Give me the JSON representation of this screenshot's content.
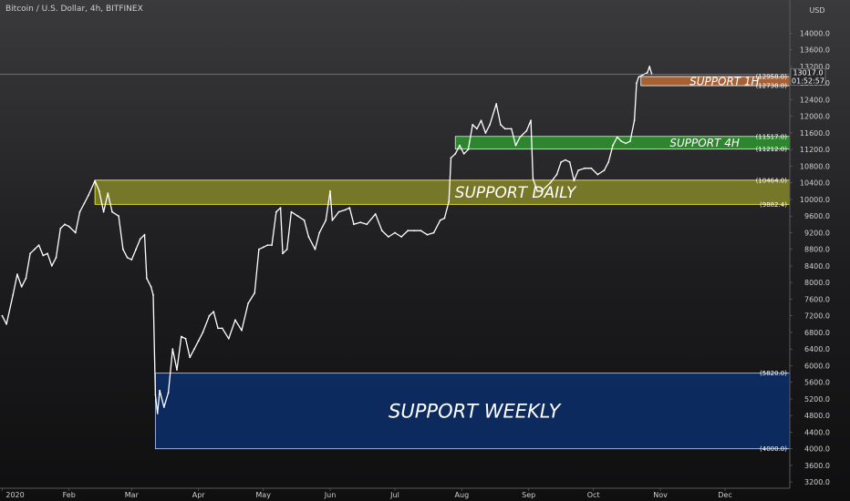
{
  "header": {
    "title": "Bitcoin / U.S. Dollar, 4h, BITFINEX"
  },
  "price_scale": {
    "currency": "USD",
    "last_price": "13017.0",
    "countdown": "01:52:57"
  },
  "chart_data": {
    "type": "line",
    "title": "Bitcoin / U.S. Dollar, 4h, BITFINEX",
    "xlabel": "",
    "ylabel": "",
    "ylim": [
      3050,
      14800
    ],
    "grid": false,
    "y_ticks": [
      3200,
      3600,
      4000,
      4400,
      4800,
      5200,
      5600,
      6000,
      6400,
      6800,
      7200,
      7600,
      8000,
      8400,
      8800,
      9200,
      9600,
      10000,
      10400,
      10800,
      11200,
      11600,
      12000,
      12400,
      12800,
      13200,
      13600,
      14000
    ],
    "x_ticks": [
      "2020",
      "Feb",
      "Mar",
      "Apr",
      "May",
      "Jun",
      "Jul",
      "Aug",
      "Sep",
      "Oct",
      "Nov",
      "Dec"
    ],
    "x_tick_dates": [
      "2020-01-01",
      "2020-02-01",
      "2020-03-01",
      "2020-04-01",
      "2020-05-01",
      "2020-06-01",
      "2020-07-01",
      "2020-08-01",
      "2020-09-01",
      "2020-10-01",
      "2020-11-01",
      "2020-12-01"
    ],
    "x_range": [
      "2019-12-31",
      "2020-12-31"
    ],
    "series": [
      {
        "values": [
          [
            "2020-01-01",
            7200
          ],
          [
            "2020-01-03",
            7000
          ],
          [
            "2020-01-06",
            7700
          ],
          [
            "2020-01-08",
            8200
          ],
          [
            "2020-01-10",
            7900
          ],
          [
            "2020-01-12",
            8100
          ],
          [
            "2020-01-14",
            8700
          ],
          [
            "2020-01-16",
            8800
          ],
          [
            "2020-01-18",
            8900
          ],
          [
            "2020-01-20",
            8650
          ],
          [
            "2020-01-22",
            8700
          ],
          [
            "2020-01-24",
            8400
          ],
          [
            "2020-01-26",
            8600
          ],
          [
            "2020-01-28",
            9300
          ],
          [
            "2020-01-30",
            9400
          ],
          [
            "2020-02-01",
            9350
          ],
          [
            "2020-02-04",
            9200
          ],
          [
            "2020-02-06",
            9700
          ],
          [
            "2020-02-08",
            9900
          ],
          [
            "2020-02-10",
            10100
          ],
          [
            "2020-02-13",
            10450
          ],
          [
            "2020-02-15",
            10200
          ],
          [
            "2020-02-17",
            9700
          ],
          [
            "2020-02-19",
            10150
          ],
          [
            "2020-02-21",
            9700
          ],
          [
            "2020-02-24",
            9600
          ],
          [
            "2020-02-26",
            8800
          ],
          [
            "2020-02-28",
            8600
          ],
          [
            "2020-03-01",
            8550
          ],
          [
            "2020-03-03",
            8800
          ],
          [
            "2020-03-05",
            9050
          ],
          [
            "2020-03-07",
            9150
          ],
          [
            "2020-03-08",
            8100
          ],
          [
            "2020-03-10",
            7900
          ],
          [
            "2020-03-11",
            7700
          ],
          [
            "2020-03-12",
            5300
          ],
          [
            "2020-03-13",
            4850
          ],
          [
            "2020-03-14",
            5400
          ],
          [
            "2020-03-16",
            5000
          ],
          [
            "2020-03-18",
            5350
          ],
          [
            "2020-03-20",
            6400
          ],
          [
            "2020-03-22",
            5900
          ],
          [
            "2020-03-24",
            6700
          ],
          [
            "2020-03-26",
            6650
          ],
          [
            "2020-03-28",
            6200
          ],
          [
            "2020-03-30",
            6400
          ],
          [
            "2020-04-01",
            6600
          ],
          [
            "2020-04-03",
            6800
          ],
          [
            "2020-04-06",
            7200
          ],
          [
            "2020-04-08",
            7300
          ],
          [
            "2020-04-10",
            6900
          ],
          [
            "2020-04-12",
            6900
          ],
          [
            "2020-04-15",
            6650
          ],
          [
            "2020-04-18",
            7100
          ],
          [
            "2020-04-21",
            6850
          ],
          [
            "2020-04-24",
            7500
          ],
          [
            "2020-04-27",
            7750
          ],
          [
            "2020-04-29",
            8800
          ],
          [
            "2020-05-01",
            8850
          ],
          [
            "2020-05-03",
            8900
          ],
          [
            "2020-05-05",
            8900
          ],
          [
            "2020-05-07",
            9700
          ],
          [
            "2020-05-09",
            9800
          ],
          [
            "2020-05-10",
            8700
          ],
          [
            "2020-05-12",
            8800
          ],
          [
            "2020-05-14",
            9700
          ],
          [
            "2020-05-17",
            9600
          ],
          [
            "2020-05-20",
            9500
          ],
          [
            "2020-05-22",
            9100
          ],
          [
            "2020-05-25",
            8800
          ],
          [
            "2020-05-27",
            9200
          ],
          [
            "2020-05-30",
            9500
          ],
          [
            "2020-06-01",
            10200
          ],
          [
            "2020-06-02",
            9500
          ],
          [
            "2020-06-05",
            9700
          ],
          [
            "2020-06-08",
            9750
          ],
          [
            "2020-06-10",
            9800
          ],
          [
            "2020-06-12",
            9400
          ],
          [
            "2020-06-15",
            9450
          ],
          [
            "2020-06-18",
            9400
          ],
          [
            "2020-06-22",
            9650
          ],
          [
            "2020-06-25",
            9250
          ],
          [
            "2020-06-28",
            9100
          ],
          [
            "2020-07-01",
            9200
          ],
          [
            "2020-07-04",
            9100
          ],
          [
            "2020-07-07",
            9250
          ],
          [
            "2020-07-10",
            9250
          ],
          [
            "2020-07-13",
            9250
          ],
          [
            "2020-07-16",
            9150
          ],
          [
            "2020-07-19",
            9200
          ],
          [
            "2020-07-22",
            9500
          ],
          [
            "2020-07-24",
            9550
          ],
          [
            "2020-07-26",
            9950
          ],
          [
            "2020-07-27",
            11000
          ],
          [
            "2020-07-29",
            11100
          ],
          [
            "2020-07-31",
            11300
          ],
          [
            "2020-08-02",
            11100
          ],
          [
            "2020-08-04",
            11200
          ],
          [
            "2020-08-06",
            11800
          ],
          [
            "2020-08-08",
            11700
          ],
          [
            "2020-08-10",
            11900
          ],
          [
            "2020-08-12",
            11600
          ],
          [
            "2020-08-14",
            11800
          ],
          [
            "2020-08-17",
            12300
          ],
          [
            "2020-08-19",
            11800
          ],
          [
            "2020-08-21",
            11700
          ],
          [
            "2020-08-24",
            11700
          ],
          [
            "2020-08-26",
            11300
          ],
          [
            "2020-08-28",
            11500
          ],
          [
            "2020-08-31",
            11650
          ],
          [
            "2020-09-02",
            11900
          ],
          [
            "2020-09-03",
            10500
          ],
          [
            "2020-09-05",
            10200
          ],
          [
            "2020-09-07",
            10200
          ],
          [
            "2020-09-09",
            10300
          ],
          [
            "2020-09-11",
            10400
          ],
          [
            "2020-09-14",
            10600
          ],
          [
            "2020-09-16",
            10900
          ],
          [
            "2020-09-18",
            10950
          ],
          [
            "2020-09-20",
            10900
          ],
          [
            "2020-09-22",
            10450
          ],
          [
            "2020-09-24",
            10700
          ],
          [
            "2020-09-27",
            10750
          ],
          [
            "2020-09-30",
            10750
          ],
          [
            "2020-10-03",
            10600
          ],
          [
            "2020-10-06",
            10700
          ],
          [
            "2020-10-08",
            10900
          ],
          [
            "2020-10-10",
            11300
          ],
          [
            "2020-10-12",
            11500
          ],
          [
            "2020-10-14",
            11400
          ],
          [
            "2020-10-16",
            11350
          ],
          [
            "2020-10-18",
            11400
          ],
          [
            "2020-10-20",
            11900
          ],
          [
            "2020-10-21",
            12800
          ],
          [
            "2020-10-22",
            12950
          ],
          [
            "2020-10-24",
            13000
          ],
          [
            "2020-10-26",
            13050
          ],
          [
            "2020-10-27",
            13200
          ],
          [
            "2020-10-28",
            13017
          ]
        ]
      }
    ],
    "zones": [
      {
        "label": "SUPPORT 1H",
        "low": 12738.0,
        "high": 12958.0,
        "start": "2020-10-23",
        "low_label": "(12738.0)",
        "high_label": "(12958.0)",
        "fill": "#c26a35",
        "border": "#ffffff"
      },
      {
        "label": "SUPPORT 4H",
        "low": 11212.0,
        "high": 11517.0,
        "start": "2020-07-29",
        "low_label": "(11212.0)",
        "high_label": "(11517.0)",
        "fill": "#2e9a2e",
        "border": "#c8ffc8"
      },
      {
        "label": "SUPPORT DAILY",
        "low": 9882.4,
        "high": 10464.0,
        "start": "2020-02-13",
        "low_label": "(9882.4)",
        "high_label": "(10464.0)",
        "fill": "#8a8a2a",
        "border": "#ffff3a"
      },
      {
        "label": "SUPPORT WEEKLY",
        "low": 4000.0,
        "high": 5820.0,
        "start": "2020-03-12",
        "low_label": "(4000.0)",
        "high_label": "(5820.0)",
        "fill": "#0b2f6e",
        "border": "#bcd0ff"
      }
    ]
  }
}
